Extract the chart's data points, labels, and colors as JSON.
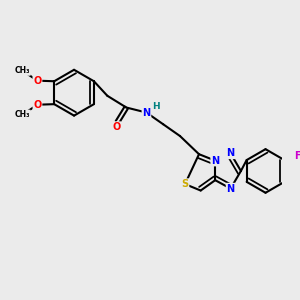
{
  "background_color": "#ebebeb",
  "bond_color": "#000000",
  "atom_colors": {
    "O": "#ff0000",
    "N": "#0000ff",
    "S": "#ccaa00",
    "F": "#cc00cc",
    "H": "#008080",
    "C": "#000000"
  },
  "figsize": [
    3.0,
    3.0
  ],
  "dpi": 100
}
